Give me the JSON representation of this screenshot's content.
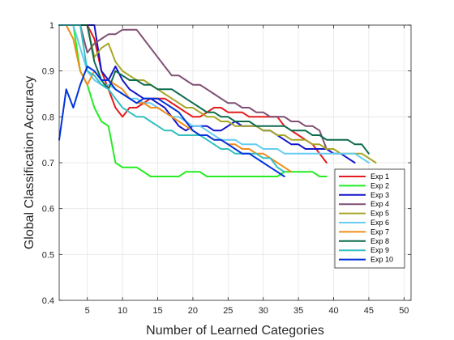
{
  "chart_data": {
    "type": "line",
    "title": "",
    "xlabel": "Number of Learned Categories",
    "ylabel": "Global Classification Accuracy",
    "xlim": [
      1,
      51
    ],
    "ylim": [
      0.4,
      1.0
    ],
    "xticks": [
      5,
      10,
      15,
      20,
      25,
      30,
      35,
      40,
      45,
      50
    ],
    "yticks": [
      0.4,
      0.5,
      0.6,
      0.7,
      0.8,
      0.9,
      1.0
    ],
    "ytick_labels": [
      "0.4",
      "0.5",
      "0.6",
      "0.7",
      "0.8",
      "0.9",
      "1"
    ],
    "grid": true,
    "legend_position": "lower-right",
    "series": [
      {
        "name": "Exp 1",
        "color": "#e41a1c",
        "x": [
          1,
          2,
          3,
          4,
          5,
          6,
          7,
          8,
          9,
          10,
          11,
          12,
          13,
          14,
          15,
          16,
          17,
          18,
          19,
          20,
          21,
          22,
          23,
          24,
          25,
          26,
          27,
          28,
          29,
          30,
          31,
          32,
          33,
          34,
          35,
          36,
          37,
          38,
          39
        ],
        "y": [
          1.0,
          1.0,
          1.0,
          1.0,
          1.0,
          0.97,
          0.9,
          0.86,
          0.82,
          0.8,
          0.82,
          0.82,
          0.83,
          0.84,
          0.84,
          0.84,
          0.83,
          0.82,
          0.81,
          0.8,
          0.8,
          0.81,
          0.82,
          0.82,
          0.81,
          0.81,
          0.81,
          0.8,
          0.8,
          0.8,
          0.8,
          0.8,
          0.78,
          0.77,
          0.76,
          0.75,
          0.74,
          0.72,
          0.7
        ]
      },
      {
        "name": "Exp 2",
        "color": "#22ee22",
        "x": [
          1,
          2,
          3,
          4,
          5,
          6,
          7,
          8,
          9,
          10,
          11,
          12,
          13,
          14,
          15,
          16,
          17,
          18,
          19,
          20,
          21,
          22,
          23,
          24,
          25,
          26,
          27,
          28,
          29,
          30,
          31,
          32,
          33,
          34,
          35,
          36,
          37,
          38,
          39
        ],
        "y": [
          1.0,
          1.0,
          1.0,
          0.9,
          0.87,
          0.82,
          0.79,
          0.78,
          0.7,
          0.69,
          0.69,
          0.69,
          0.68,
          0.67,
          0.67,
          0.67,
          0.67,
          0.67,
          0.68,
          0.68,
          0.68,
          0.67,
          0.67,
          0.67,
          0.67,
          0.67,
          0.67,
          0.67,
          0.67,
          0.67,
          0.67,
          0.67,
          0.68,
          0.68,
          0.68,
          0.68,
          0.68,
          0.67,
          0.67
        ]
      },
      {
        "name": "Exp 3",
        "color": "#1515cc",
        "x": [
          1,
          2,
          3,
          4,
          5,
          6,
          7,
          8,
          9,
          10,
          11,
          12,
          13,
          14,
          15,
          16,
          17,
          18,
          19,
          20,
          21,
          22,
          23,
          24,
          25,
          26,
          27,
          28,
          29,
          30,
          31,
          32,
          33,
          34,
          35,
          36,
          37,
          38,
          39,
          40,
          41,
          42,
          43
        ],
        "y": [
          1.0,
          1.0,
          1.0,
          1.0,
          1.0,
          1.0,
          0.9,
          0.88,
          0.91,
          0.88,
          0.86,
          0.85,
          0.84,
          0.84,
          0.83,
          0.82,
          0.8,
          0.78,
          0.77,
          0.78,
          0.78,
          0.78,
          0.77,
          0.77,
          0.78,
          0.79,
          0.78,
          0.78,
          0.78,
          0.77,
          0.77,
          0.76,
          0.75,
          0.74,
          0.74,
          0.73,
          0.73,
          0.73,
          0.73,
          0.72,
          0.72,
          0.71,
          0.7
        ]
      },
      {
        "name": "Exp 4",
        "color": "#7f4f73",
        "x": [
          1,
          2,
          3,
          4,
          5,
          6,
          7,
          8,
          9,
          10,
          11,
          12,
          13,
          14,
          15,
          16,
          17,
          18,
          19,
          20,
          21,
          22,
          23,
          24,
          25,
          26,
          27,
          28,
          29,
          30,
          31,
          32,
          33,
          34,
          35,
          36,
          37,
          38,
          39
        ],
        "y": [
          1.0,
          1.0,
          1.0,
          1.0,
          0.94,
          0.96,
          0.97,
          0.98,
          0.98,
          0.99,
          0.99,
          0.99,
          0.97,
          0.95,
          0.93,
          0.91,
          0.89,
          0.89,
          0.88,
          0.87,
          0.87,
          0.86,
          0.85,
          0.84,
          0.83,
          0.83,
          0.82,
          0.82,
          0.81,
          0.81,
          0.8,
          0.8,
          0.8,
          0.79,
          0.79,
          0.78,
          0.78,
          0.77,
          0.73
        ]
      },
      {
        "name": "Exp 5",
        "color": "#a6a626",
        "x": [
          1,
          2,
          3,
          4,
          5,
          6,
          7,
          8,
          9,
          10,
          11,
          12,
          13,
          14,
          15,
          16,
          17,
          18,
          19,
          20,
          21,
          22,
          23,
          24,
          25,
          26,
          27,
          28,
          29,
          30,
          31,
          32,
          33,
          34,
          35,
          36,
          37,
          38,
          39,
          40,
          41,
          42,
          43,
          44,
          45,
          46
        ],
        "y": [
          1.0,
          1.0,
          1.0,
          1.0,
          1.0,
          0.93,
          0.95,
          0.96,
          0.92,
          0.9,
          0.89,
          0.88,
          0.88,
          0.87,
          0.86,
          0.85,
          0.84,
          0.83,
          0.82,
          0.82,
          0.81,
          0.8,
          0.8,
          0.79,
          0.79,
          0.78,
          0.78,
          0.78,
          0.78,
          0.77,
          0.77,
          0.76,
          0.76,
          0.75,
          0.75,
          0.75,
          0.74,
          0.74,
          0.73,
          0.73,
          0.72,
          0.72,
          0.72,
          0.72,
          0.71,
          0.7
        ]
      },
      {
        "name": "Exp 6",
        "color": "#66ccf2",
        "x": [
          1,
          2,
          3,
          4,
          5,
          6,
          7,
          8,
          9,
          10,
          11,
          12,
          13,
          14,
          15,
          16,
          17,
          18,
          19,
          20,
          21,
          22,
          23,
          24,
          25,
          26,
          27,
          28,
          29,
          30,
          31,
          32,
          33,
          34,
          35,
          36,
          37,
          38,
          39,
          40,
          41,
          42,
          43,
          44,
          45
        ],
        "y": [
          1.0,
          1.0,
          1.0,
          0.95,
          0.9,
          0.88,
          0.87,
          0.87,
          0.86,
          0.85,
          0.84,
          0.84,
          0.83,
          0.83,
          0.82,
          0.81,
          0.8,
          0.8,
          0.79,
          0.78,
          0.78,
          0.77,
          0.76,
          0.75,
          0.75,
          0.75,
          0.74,
          0.74,
          0.74,
          0.73,
          0.73,
          0.73,
          0.72,
          0.72,
          0.72,
          0.72,
          0.72,
          0.72,
          0.72,
          0.72,
          0.72,
          0.72,
          0.72,
          0.71,
          0.7
        ]
      },
      {
        "name": "Exp 7",
        "color": "#f28c1a",
        "x": [
          1,
          2,
          3,
          4,
          5,
          6,
          7,
          8,
          9,
          10,
          11,
          12,
          13,
          14,
          15,
          16,
          17,
          18,
          19,
          20,
          21,
          22,
          23,
          24,
          25,
          26,
          27,
          28,
          29,
          30,
          31,
          32,
          33,
          34
        ],
        "y": [
          1.0,
          1.0,
          0.97,
          0.9,
          0.87,
          0.9,
          0.88,
          0.88,
          0.87,
          0.86,
          0.84,
          0.83,
          0.83,
          0.82,
          0.82,
          0.81,
          0.8,
          0.79,
          0.78,
          0.77,
          0.76,
          0.76,
          0.75,
          0.75,
          0.74,
          0.74,
          0.73,
          0.73,
          0.72,
          0.72,
          0.71,
          0.7,
          0.69,
          0.68
        ]
      },
      {
        "name": "Exp 8",
        "color": "#0d6b4d",
        "x": [
          1,
          2,
          3,
          4,
          5,
          6,
          7,
          8,
          9,
          10,
          11,
          12,
          13,
          14,
          15,
          16,
          17,
          18,
          19,
          20,
          21,
          22,
          23,
          24,
          25,
          26,
          27,
          28,
          29,
          30,
          31,
          32,
          33,
          34,
          35,
          36,
          37,
          38,
          39,
          40,
          41,
          42,
          43,
          44,
          45
        ],
        "y": [
          1.0,
          1.0,
          1.0,
          1.0,
          1.0,
          0.92,
          0.88,
          0.86,
          0.9,
          0.89,
          0.88,
          0.88,
          0.87,
          0.87,
          0.86,
          0.86,
          0.86,
          0.85,
          0.84,
          0.83,
          0.82,
          0.81,
          0.81,
          0.8,
          0.8,
          0.79,
          0.79,
          0.79,
          0.78,
          0.78,
          0.78,
          0.78,
          0.78,
          0.77,
          0.77,
          0.77,
          0.76,
          0.76,
          0.75,
          0.75,
          0.75,
          0.75,
          0.74,
          0.74,
          0.72
        ]
      },
      {
        "name": "Exp 9",
        "color": "#33bfbf",
        "x": [
          1,
          2,
          3,
          4,
          5,
          6,
          7,
          8,
          9,
          10,
          11,
          12,
          13,
          14,
          15,
          16,
          17,
          18,
          19,
          20,
          21,
          22,
          23,
          24,
          25,
          26,
          27,
          28,
          29,
          30,
          31,
          32,
          33
        ],
        "y": [
          1.0,
          1.0,
          1.0,
          1.0,
          0.9,
          0.89,
          0.87,
          0.86,
          0.84,
          0.82,
          0.81,
          0.8,
          0.8,
          0.79,
          0.78,
          0.77,
          0.77,
          0.76,
          0.76,
          0.76,
          0.76,
          0.75,
          0.74,
          0.73,
          0.73,
          0.72,
          0.72,
          0.72,
          0.72,
          0.71,
          0.71,
          0.69,
          0.68
        ]
      },
      {
        "name": "Exp 10",
        "color": "#0033dd",
        "x": [
          1,
          2,
          3,
          4,
          5,
          6,
          7,
          8,
          9,
          10,
          11,
          12,
          13,
          14,
          15,
          16,
          17,
          18,
          19,
          20,
          21,
          22,
          23,
          24,
          25,
          26,
          27,
          28,
          29,
          30,
          31,
          32,
          33
        ],
        "y": [
          0.75,
          0.86,
          0.82,
          0.87,
          0.91,
          0.9,
          0.88,
          0.88,
          0.86,
          0.85,
          0.84,
          0.83,
          0.84,
          0.84,
          0.84,
          0.83,
          0.82,
          0.81,
          0.79,
          0.77,
          0.76,
          0.76,
          0.75,
          0.75,
          0.74,
          0.73,
          0.72,
          0.72,
          0.71,
          0.7,
          0.69,
          0.68,
          0.67
        ]
      }
    ]
  }
}
